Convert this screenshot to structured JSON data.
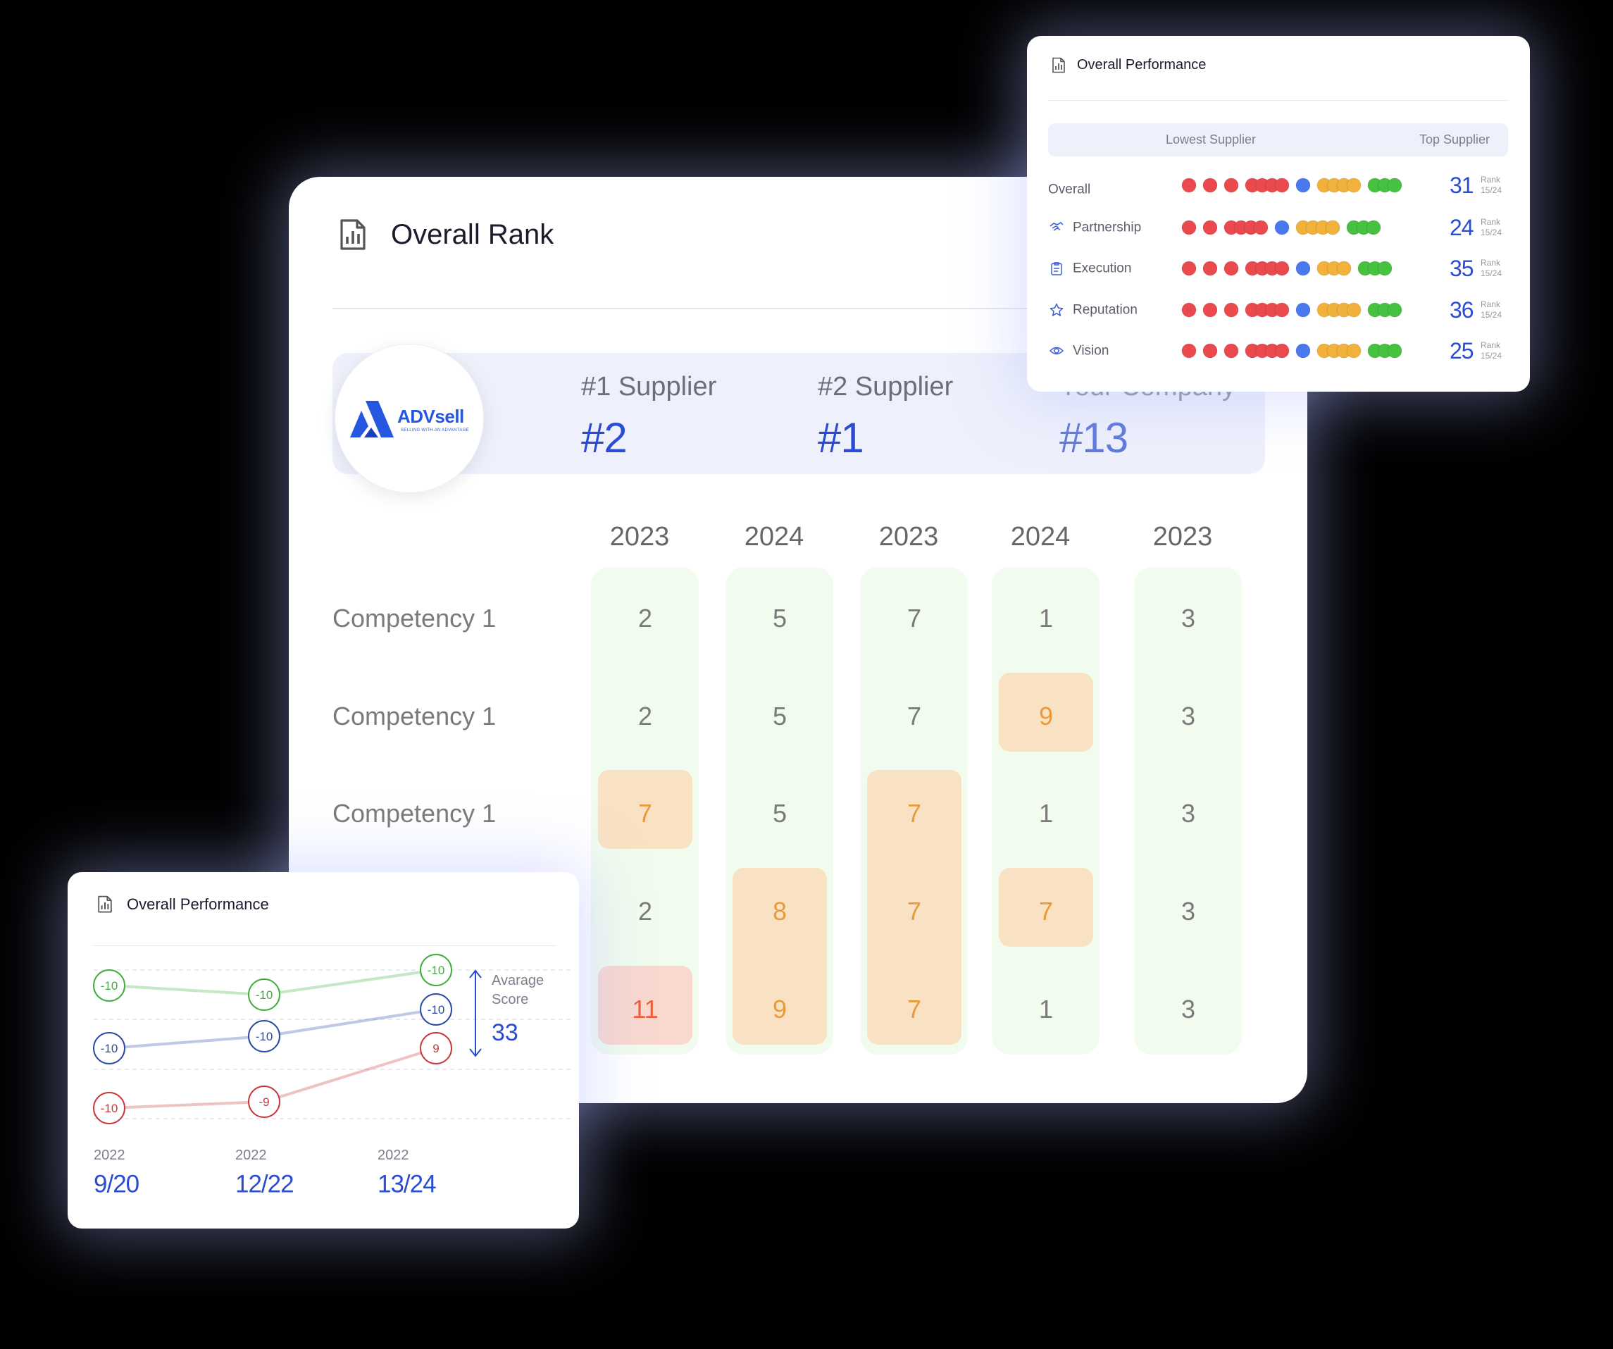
{
  "main": {
    "title": "Overall Rank",
    "logo": {
      "name": "ADVsell",
      "tagline": "SELLING WITH AN ADVANTAGE"
    },
    "suppliers": [
      {
        "label": "#1 Supplier",
        "rank": "#2"
      },
      {
        "label": "#2 Supplier",
        "rank": "#1"
      },
      {
        "label": "Your Company",
        "rank": "#13"
      }
    ],
    "years": [
      "2023",
      "2024",
      "2023",
      "2024",
      "2023"
    ],
    "strip_color": "#f1fbee",
    "rows": [
      {
        "label": "Competency 1",
        "values": [
          2,
          5,
          7,
          1,
          3
        ],
        "fills": [
          null,
          null,
          null,
          null,
          null
        ]
      },
      {
        "label": "Competency 1",
        "values": [
          2,
          5,
          7,
          9,
          3
        ],
        "fills": [
          null,
          null,
          null,
          "#f9e1c3",
          null
        ]
      },
      {
        "label": "Competency 1",
        "values": [
          7,
          5,
          7,
          1,
          3
        ],
        "fills": [
          "#f9e1c3",
          null,
          "#f9e1c3",
          null,
          null
        ]
      },
      {
        "label": null,
        "values": [
          2,
          8,
          7,
          7,
          3
        ],
        "fills": [
          null,
          "#f9e1c3",
          "#f9e1c3",
          "#f9e1c3",
          null
        ]
      },
      {
        "label": null,
        "values": [
          11,
          9,
          7,
          1,
          3
        ],
        "fills": [
          "#f8d8cf",
          "#f9e1c3",
          "#f9e1c3",
          null,
          null
        ]
      }
    ]
  },
  "performance": {
    "title": "Overall Performance",
    "header": [
      "Lowest Supplier",
      "Top Supplier"
    ],
    "rows": [
      {
        "label": "Overall",
        "dots": [
          {
            "color": "#ea4a4e",
            "count": 1
          },
          {
            "color": "#ea4a4e",
            "count": 1
          },
          {
            "color": "#ea4a4e",
            "count": 1
          },
          {
            "color": "#ea4a4e",
            "count": 4
          },
          {
            "color": "#4a78ee",
            "count": 1
          },
          {
            "color": "#f2b13a",
            "count": 4
          },
          {
            "color": "#46c140",
            "count": 3
          }
        ],
        "score": 31,
        "rank_label": "Rank",
        "rank": "15/24"
      },
      {
        "label": "Partnership",
        "dots": [
          {
            "color": "#ea4a4e",
            "count": 1
          },
          {
            "color": "#ea4a4e",
            "count": 1
          },
          {
            "color": "#ea4a4e",
            "count": 4
          },
          {
            "color": "#4a78ee",
            "count": 1
          },
          {
            "color": "#f2b13a",
            "count": 4
          },
          {
            "color": "#46c140",
            "count": 3
          }
        ],
        "score": 24,
        "rank_label": "Rank",
        "rank": "15/24"
      },
      {
        "label": "Execution",
        "dots": [
          {
            "color": "#ea4a4e",
            "count": 1
          },
          {
            "color": "#ea4a4e",
            "count": 1
          },
          {
            "color": "#ea4a4e",
            "count": 1
          },
          {
            "color": "#ea4a4e",
            "count": 4
          },
          {
            "color": "#4a78ee",
            "count": 1
          },
          {
            "color": "#f2b13a",
            "count": 3
          },
          {
            "color": "#46c140",
            "count": 3
          }
        ],
        "score": 35,
        "rank_label": "Rank",
        "rank": "15/24"
      },
      {
        "label": "Reputation",
        "dots": [
          {
            "color": "#ea4a4e",
            "count": 1
          },
          {
            "color": "#ea4a4e",
            "count": 1
          },
          {
            "color": "#ea4a4e",
            "count": 1
          },
          {
            "color": "#ea4a4e",
            "count": 4
          },
          {
            "color": "#4a78ee",
            "count": 1
          },
          {
            "color": "#f2b13a",
            "count": 4
          },
          {
            "color": "#46c140",
            "count": 3
          }
        ],
        "score": 36,
        "rank_label": "Rank",
        "rank": "15/24"
      },
      {
        "label": "Vision",
        "dots": [
          {
            "color": "#ea4a4e",
            "count": 1
          },
          {
            "color": "#ea4a4e",
            "count": 1
          },
          {
            "color": "#ea4a4e",
            "count": 1
          },
          {
            "color": "#ea4a4e",
            "count": 4
          },
          {
            "color": "#4a78ee",
            "count": 1
          },
          {
            "color": "#f2b13a",
            "count": 4
          },
          {
            "color": "#46c140",
            "count": 3
          }
        ],
        "score": 25,
        "rank_label": "Rank",
        "rank": "15/24"
      }
    ]
  },
  "trend": {
    "title": "Overall Performance",
    "series": [
      {
        "color": "#3fae3a",
        "labels": [
          -10,
          -10,
          -10
        ]
      },
      {
        "color": "#2b4aa5",
        "labels": [
          -10,
          -10,
          -10
        ]
      },
      {
        "color": "#c7383d",
        "labels": [
          -10,
          -9,
          9
        ]
      }
    ],
    "average": {
      "label": "Avarage Score",
      "value": 33
    },
    "periods": [
      {
        "year": "2022",
        "value": "9/20"
      },
      {
        "year": "2022",
        "value": "12/22"
      },
      {
        "year": "2022",
        "value": "13/24"
      }
    ]
  }
}
